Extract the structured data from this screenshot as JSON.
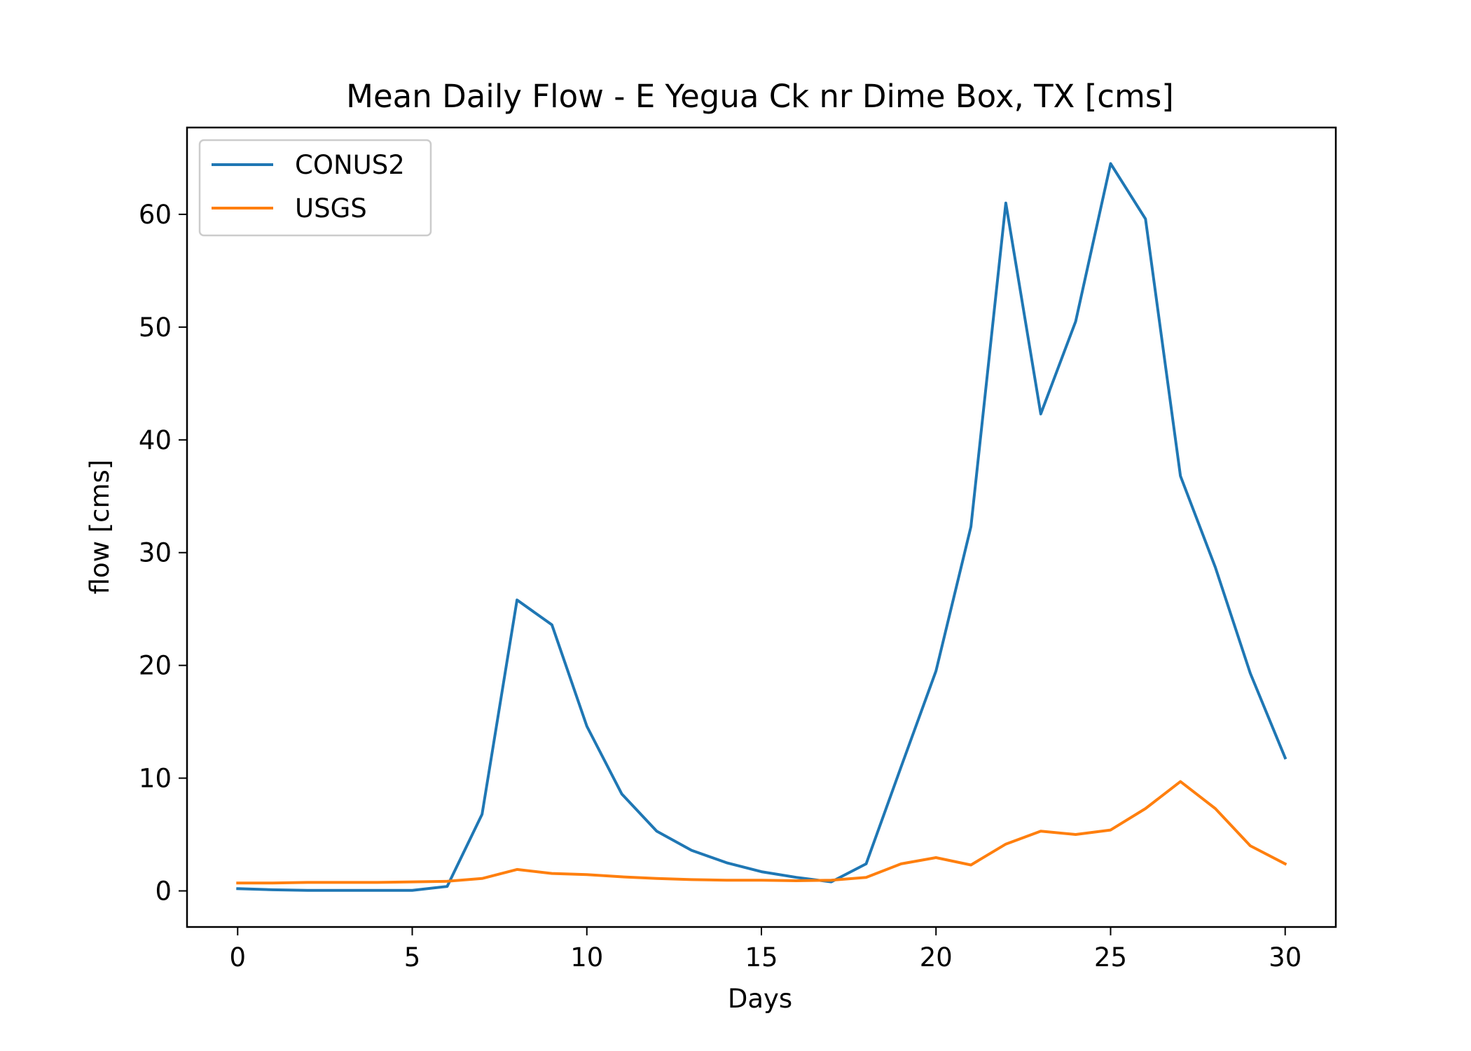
{
  "chart_data": {
    "type": "line",
    "title": "Mean Daily Flow - E Yegua Ck nr Dime Box, TX [cms]",
    "xlabel": "Days",
    "ylabel": "flow [cms]",
    "xlim": [
      -1.45,
      31.45
    ],
    "ylim": [
      -3.2,
      67.7
    ],
    "xticks": [
      0,
      5,
      10,
      15,
      20,
      25,
      30
    ],
    "yticks": [
      0,
      10,
      20,
      30,
      40,
      50,
      60
    ],
    "grid": false,
    "legend_position": "upper-left",
    "x": [
      0,
      1,
      2,
      3,
      4,
      5,
      6,
      7,
      8,
      9,
      10,
      11,
      12,
      13,
      14,
      15,
      16,
      17,
      18,
      19,
      20,
      21,
      22,
      23,
      24,
      25,
      26,
      27,
      28,
      29,
      30
    ],
    "series": [
      {
        "name": "CONUS2",
        "color": "#1f77b4",
        "values": [
          0.2,
          0.1,
          0.05,
          0.05,
          0.05,
          0.05,
          0.4,
          6.8,
          25.8,
          23.6,
          14.6,
          8.6,
          5.3,
          3.6,
          2.5,
          1.7,
          1.2,
          0.8,
          2.4,
          11.0,
          19.5,
          32.3,
          61.0,
          42.3,
          50.5,
          64.5,
          59.6,
          36.8,
          28.7,
          19.3,
          11.8
        ]
      },
      {
        "name": "USGS",
        "color": "#ff7f0e",
        "values": [
          0.7,
          0.7,
          0.75,
          0.75,
          0.75,
          0.8,
          0.85,
          1.1,
          1.9,
          1.55,
          1.45,
          1.25,
          1.1,
          1.0,
          0.95,
          0.95,
          0.9,
          0.95,
          1.2,
          2.4,
          2.95,
          2.3,
          4.15,
          5.3,
          5.0,
          5.4,
          7.3,
          9.7,
          7.3,
          4.0,
          2.4
        ]
      }
    ]
  }
}
